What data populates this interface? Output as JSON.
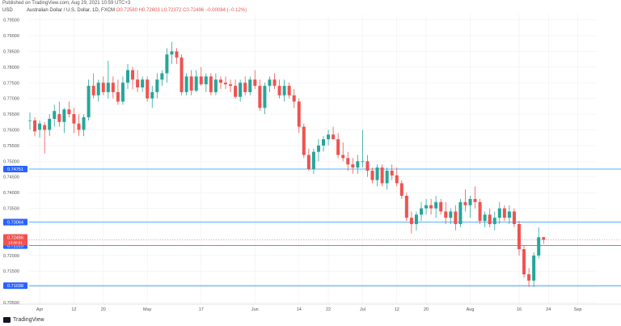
{
  "header": {
    "published": "Published on TradingView.com, Aug 29, 2021 10:59 UTC+3"
  },
  "symbol": {
    "name": "Australian Dollar / U.S. Dollar, 1D, FXCM",
    "ohlc": "O0.72580 H0.72603 L0.72372 C0.72496 −0.00084 (−0.12%)",
    "currency": "USD"
  },
  "footer": {
    "brand": "TradingView"
  },
  "colors": {
    "up": "#26a69a",
    "down": "#ef5350",
    "level_line": "#2196f3",
    "level_tag": "#2962ff",
    "price_tag": "#ef5350",
    "grid": "#eef0f4"
  },
  "chart_data": {
    "type": "candlestick",
    "ylim": [
      0.7045,
      0.7967
    ],
    "y_ticks": [
      "0.79500",
      "0.79000",
      "0.78500",
      "0.78000",
      "0.77500",
      "0.77000",
      "0.76500",
      "0.76000",
      "0.75500",
      "0.75000",
      "0.74500",
      "0.74000",
      "0.73500",
      "0.73000",
      "0.72500",
      "0.72000",
      "0.71500",
      "0.71000",
      "0.70500"
    ],
    "x_labels": [
      {
        "label": "Apr",
        "index": 2
      },
      {
        "label": "12",
        "index": 9
      },
      {
        "label": "20",
        "index": 15
      },
      {
        "label": "May",
        "index": 24
      },
      {
        "label": "17",
        "index": 35
      },
      {
        "label": "Jun",
        "index": 46
      },
      {
        "label": "14",
        "index": 55
      },
      {
        "label": "22",
        "index": 61
      },
      {
        "label": "Jul",
        "index": 68
      },
      {
        "label": "12",
        "index": 75
      },
      {
        "label": "20",
        "index": 81
      },
      {
        "label": "Aug",
        "index": 90
      },
      {
        "label": "16",
        "index": 100
      },
      {
        "label": "24",
        "index": 106
      },
      {
        "label": "Sep",
        "index": 112
      }
    ],
    "levels": [
      {
        "value": 0.74751,
        "label": "0.74751"
      },
      {
        "value": 0.73064,
        "label": "0.73064"
      },
      {
        "value": 0.72315,
        "label": "0.72315"
      },
      {
        "value": 0.71038,
        "label": "0.71038"
      }
    ],
    "last_price": {
      "value": 0.72496,
      "label": "0.72496",
      "countdown": "13:00:01"
    },
    "candles": [
      [
        0.763,
        0.7655,
        0.76,
        0.763
      ],
      [
        0.763,
        0.764,
        0.758,
        0.7595
      ],
      [
        0.76,
        0.763,
        0.7575,
        0.762
      ],
      [
        0.7615,
        0.7625,
        0.7525,
        0.76
      ],
      [
        0.76,
        0.765,
        0.758,
        0.7635
      ],
      [
        0.7635,
        0.768,
        0.761,
        0.766
      ],
      [
        0.765,
        0.769,
        0.761,
        0.7625
      ],
      [
        0.7625,
        0.767,
        0.759,
        0.7665
      ],
      [
        0.7665,
        0.769,
        0.764,
        0.765
      ],
      [
        0.765,
        0.767,
        0.759,
        0.762
      ],
      [
        0.762,
        0.765,
        0.758,
        0.76
      ],
      [
        0.76,
        0.765,
        0.758,
        0.764
      ],
      [
        0.764,
        0.776,
        0.763,
        0.774
      ],
      [
        0.774,
        0.778,
        0.77,
        0.771
      ],
      [
        0.771,
        0.776,
        0.769,
        0.775
      ],
      [
        0.775,
        0.777,
        0.771,
        0.772
      ],
      [
        0.772,
        0.782,
        0.77,
        0.775
      ],
      [
        0.775,
        0.777,
        0.77,
        0.772
      ],
      [
        0.772,
        0.776,
        0.768,
        0.769
      ],
      [
        0.769,
        0.777,
        0.768,
        0.775
      ],
      [
        0.775,
        0.781,
        0.773,
        0.779
      ],
      [
        0.779,
        0.78,
        0.773,
        0.776
      ],
      [
        0.776,
        0.779,
        0.772,
        0.7735
      ],
      [
        0.7735,
        0.777,
        0.772,
        0.776
      ],
      [
        0.776,
        0.777,
        0.769,
        0.77
      ],
      [
        0.77,
        0.774,
        0.767,
        0.772
      ],
      [
        0.772,
        0.778,
        0.77,
        0.776
      ],
      [
        0.776,
        0.779,
        0.774,
        0.778
      ],
      [
        0.778,
        0.786,
        0.775,
        0.784
      ],
      [
        0.784,
        0.788,
        0.781,
        0.785
      ],
      [
        0.785,
        0.786,
        0.781,
        0.783
      ],
      [
        0.783,
        0.784,
        0.771,
        0.772
      ],
      [
        0.772,
        0.778,
        0.771,
        0.777
      ],
      [
        0.777,
        0.779,
        0.771,
        0.7725
      ],
      [
        0.7725,
        0.779,
        0.772,
        0.777
      ],
      [
        0.777,
        0.78,
        0.774,
        0.7745
      ],
      [
        0.7745,
        0.778,
        0.772,
        0.777
      ],
      [
        0.777,
        0.778,
        0.771,
        0.772
      ],
      [
        0.772,
        0.778,
        0.771,
        0.776
      ],
      [
        0.776,
        0.777,
        0.773,
        0.775
      ],
      [
        0.775,
        0.777,
        0.773,
        0.7745
      ],
      [
        0.7745,
        0.776,
        0.772,
        0.774
      ],
      [
        0.774,
        0.776,
        0.77,
        0.7705
      ],
      [
        0.7705,
        0.776,
        0.769,
        0.775
      ],
      [
        0.775,
        0.777,
        0.771,
        0.772
      ],
      [
        0.772,
        0.777,
        0.771,
        0.776
      ],
      [
        0.776,
        0.779,
        0.773,
        0.774
      ],
      [
        0.774,
        0.776,
        0.766,
        0.767
      ],
      [
        0.767,
        0.775,
        0.765,
        0.774
      ],
      [
        0.774,
        0.777,
        0.772,
        0.776
      ],
      [
        0.776,
        0.778,
        0.773,
        0.774
      ],
      [
        0.774,
        0.776,
        0.77,
        0.771
      ],
      [
        0.771,
        0.776,
        0.769,
        0.774
      ],
      [
        0.774,
        0.775,
        0.77,
        0.771
      ],
      [
        0.771,
        0.773,
        0.767,
        0.769
      ],
      [
        0.769,
        0.77,
        0.759,
        0.761
      ],
      [
        0.761,
        0.762,
        0.751,
        0.752
      ],
      [
        0.752,
        0.754,
        0.747,
        0.7475
      ],
      [
        0.7475,
        0.754,
        0.746,
        0.753
      ],
      [
        0.753,
        0.757,
        0.75,
        0.755
      ],
      [
        0.755,
        0.758,
        0.753,
        0.757
      ],
      [
        0.757,
        0.76,
        0.755,
        0.7585
      ],
      [
        0.7585,
        0.761,
        0.757,
        0.757
      ],
      [
        0.757,
        0.759,
        0.751,
        0.752
      ],
      [
        0.752,
        0.756,
        0.75,
        0.751
      ],
      [
        0.751,
        0.753,
        0.747,
        0.749
      ],
      [
        0.749,
        0.751,
        0.746,
        0.748
      ],
      [
        0.748,
        0.752,
        0.746,
        0.75
      ],
      [
        0.75,
        0.76,
        0.748,
        0.75
      ],
      [
        0.75,
        0.752,
        0.745,
        0.747
      ],
      [
        0.747,
        0.748,
        0.743,
        0.744
      ],
      [
        0.744,
        0.749,
        0.742,
        0.748
      ],
      [
        0.748,
        0.749,
        0.742,
        0.743
      ],
      [
        0.743,
        0.748,
        0.741,
        0.747
      ],
      [
        0.747,
        0.749,
        0.744,
        0.7455
      ],
      [
        0.7455,
        0.748,
        0.742,
        0.743
      ],
      [
        0.743,
        0.744,
        0.738,
        0.739
      ],
      [
        0.739,
        0.74,
        0.731,
        0.732
      ],
      [
        0.732,
        0.734,
        0.727,
        0.73
      ],
      [
        0.73,
        0.734,
        0.728,
        0.733
      ],
      [
        0.733,
        0.737,
        0.731,
        0.735
      ],
      [
        0.735,
        0.738,
        0.733,
        0.736
      ],
      [
        0.736,
        0.738,
        0.733,
        0.735
      ],
      [
        0.735,
        0.739,
        0.732,
        0.737
      ],
      [
        0.737,
        0.738,
        0.733,
        0.734
      ],
      [
        0.734,
        0.737,
        0.73,
        0.732
      ],
      [
        0.732,
        0.735,
        0.73,
        0.734
      ],
      [
        0.734,
        0.736,
        0.728,
        0.73
      ],
      [
        0.73,
        0.738,
        0.729,
        0.737
      ],
      [
        0.737,
        0.741,
        0.734,
        0.736
      ],
      [
        0.736,
        0.739,
        0.732,
        0.738
      ],
      [
        0.738,
        0.742,
        0.735,
        0.737
      ],
      [
        0.737,
        0.738,
        0.73,
        0.731
      ],
      [
        0.731,
        0.734,
        0.729,
        0.733
      ],
      [
        0.733,
        0.735,
        0.729,
        0.73
      ],
      [
        0.73,
        0.734,
        0.728,
        0.732
      ],
      [
        0.732,
        0.737,
        0.73,
        0.735
      ],
      [
        0.735,
        0.736,
        0.731,
        0.732
      ],
      [
        0.732,
        0.736,
        0.73,
        0.734
      ],
      [
        0.734,
        0.735,
        0.729,
        0.73
      ],
      [
        0.73,
        0.731,
        0.72,
        0.722
      ],
      [
        0.722,
        0.723,
        0.713,
        0.714
      ],
      [
        0.714,
        0.716,
        0.71,
        0.712
      ],
      [
        0.712,
        0.721,
        0.71,
        0.72
      ],
      [
        0.72,
        0.729,
        0.719,
        0.7258
      ],
      [
        0.7258,
        0.726,
        0.7237,
        0.725
      ]
    ]
  }
}
